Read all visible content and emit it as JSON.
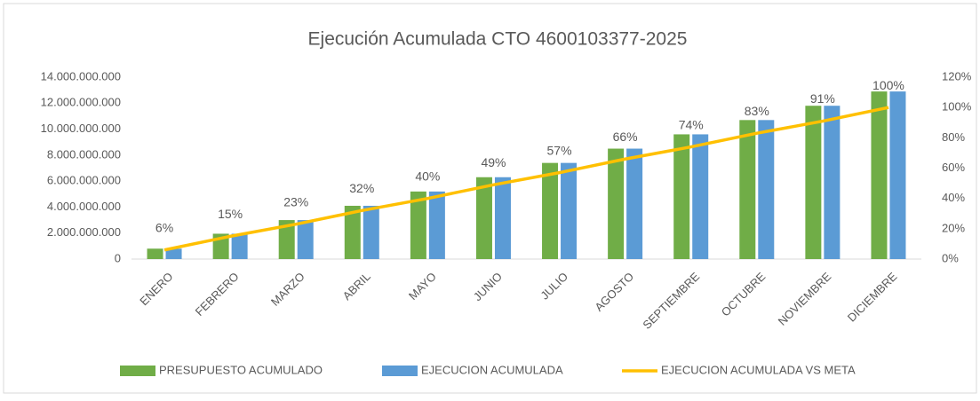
{
  "chart_data": {
    "type": "bar-line",
    "title": "Ejecución Acumulada CTO 4600103377-2025",
    "categories": [
      "ENERO",
      "FEBRERO",
      "MARZO",
      "ABRIL",
      "MAYO",
      "JUNIO",
      "JULIO",
      "AGOSTO",
      "SEPTIEMBRE",
      "OCTUBRE",
      "NOVIEMBRE",
      "DICIEMBRE"
    ],
    "series": [
      {
        "name": "PRESUPUESTO ACUMULADO",
        "color": "#70ad47",
        "values": [
          800000000,
          1950000000,
          3000000000,
          4100000000,
          5200000000,
          6300000000,
          7400000000,
          8500000000,
          9600000000,
          10700000000,
          11800000000,
          12900000000
        ]
      },
      {
        "name": "EJECUCION ACUMULADA",
        "color": "#5b9bd5",
        "values": [
          800000000,
          1950000000,
          3000000000,
          4100000000,
          5200000000,
          6300000000,
          7400000000,
          8500000000,
          9600000000,
          10700000000,
          11800000000,
          12900000000
        ]
      },
      {
        "name": "EJECUCION ACUMULADA VS META",
        "color": "#ffc000",
        "axis": "y2",
        "values": [
          6,
          15,
          23,
          32,
          40,
          49,
          57,
          66,
          74,
          83,
          91,
          100
        ],
        "value_labels": [
          "6%",
          "15%",
          "23%",
          "32%",
          "40%",
          "49%",
          "57%",
          "66%",
          "74%",
          "83%",
          "91%",
          "100%"
        ]
      }
    ],
    "ylim": [
      0,
      14000000000
    ],
    "yticks": [
      0,
      {
        "value": 2000000000,
        "label": "2.000.000.000"
      },
      {
        "value": 4000000000,
        "label": "4.000.000.000"
      },
      {
        "value": 6000000000,
        "label": "6.000.000.000"
      },
      {
        "value": 8000000000,
        "label": "8.000.000.000"
      },
      {
        "value": 10000000000,
        "label": "10.000.000.000"
      },
      {
        "value": 12000000000,
        "label": "12.000.000.000"
      },
      {
        "value": 14000000000,
        "label": "14.000.000.000"
      }
    ],
    "y2lim": [
      0,
      120
    ],
    "y2ticks": [
      {
        "value": 0,
        "label": "0%"
      },
      {
        "value": 20,
        "label": "20%"
      },
      {
        "value": 40,
        "label": "40%"
      },
      {
        "value": 60,
        "label": "60%"
      },
      {
        "value": 80,
        "label": "80%"
      },
      {
        "value": 100,
        "label": "100%"
      },
      {
        "value": 120,
        "label": "120%"
      }
    ],
    "legend": "bottom"
  }
}
